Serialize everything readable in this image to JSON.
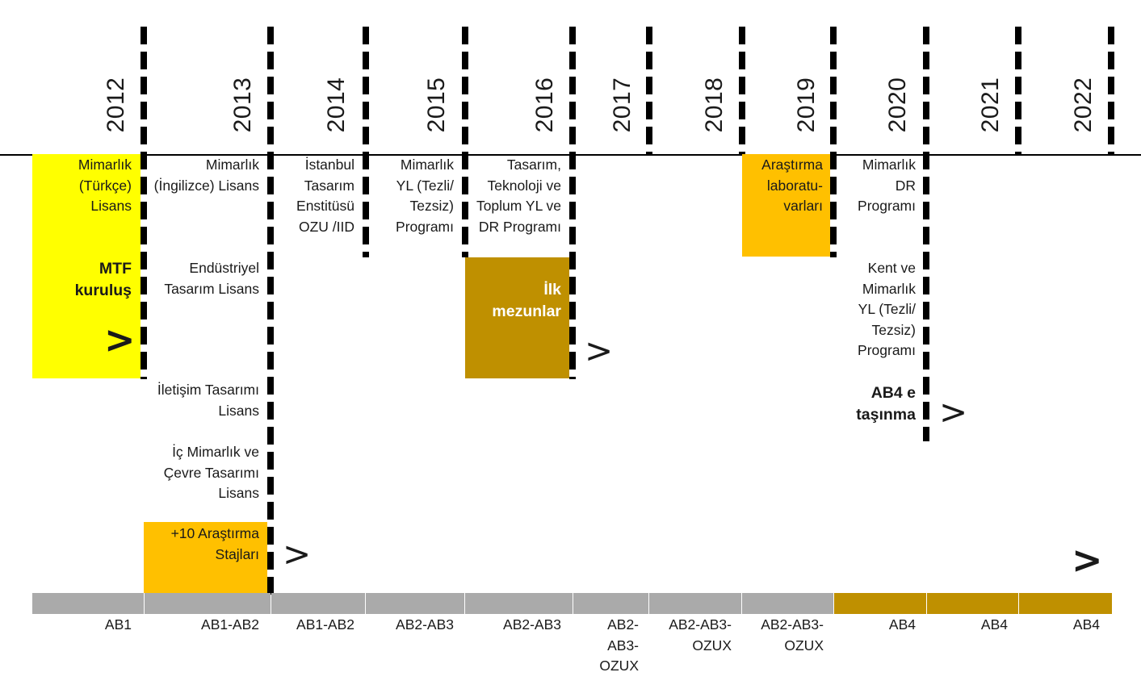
{
  "years": [
    "2012",
    "2013",
    "2014",
    "2015",
    "2016",
    "2017",
    "2018",
    "2019",
    "2020",
    "2021",
    "2022"
  ],
  "colors": {
    "yellow": "#ffff00",
    "amber": "#ffc000",
    "olive": "#bf9000",
    "gray": "#aaaaaa",
    "axis": "#000000"
  },
  "events": {
    "y2012_programme": "Mimarlık (Türkçe) Lisans",
    "y2012_milestone": "MTF kuruluş",
    "y2013_arch": "Mimarlık (İngilizce) Lisans",
    "y2013_industrial": "Endüstriyel Tasarım Lisans",
    "y2013_comm": "İletişim Tasarımı Lisans",
    "y2013_interior": "İç Mimarlık ve Çevre Tasarımı Lisans",
    "y2013_internships": "+10 Araştırma Stajları",
    "y2014_institute": "İstanbul Tasarım Enstitüsü OZU /IID",
    "y2015_masters": "Mimarlık YL (Tezli/ Tezsiz) Programı",
    "y2016_ttt": "Tasarım, Teknoloji ve Toplum YL ve DR Programı",
    "y2016_graduates": "İlk mezunlar",
    "y2019_labs": "Araştırma laboratu- varları",
    "y2020_phd": "Mimarlık DR Programı",
    "y2020_urban": "Kent ve Mimarlık YL (Tezli/ Tezsiz) Programı",
    "y2020_move": "AB4 e taşınma"
  },
  "arrow_glyph": ">",
  "buildings": [
    "AB1",
    "AB1-AB2",
    "AB1-AB2",
    "AB2-AB3",
    "AB2-AB3",
    "AB2-AB3-OZUX",
    "AB2-AB3-OZUX",
    "AB2-AB3-OZUX",
    "AB4",
    "AB4",
    "AB4"
  ]
}
